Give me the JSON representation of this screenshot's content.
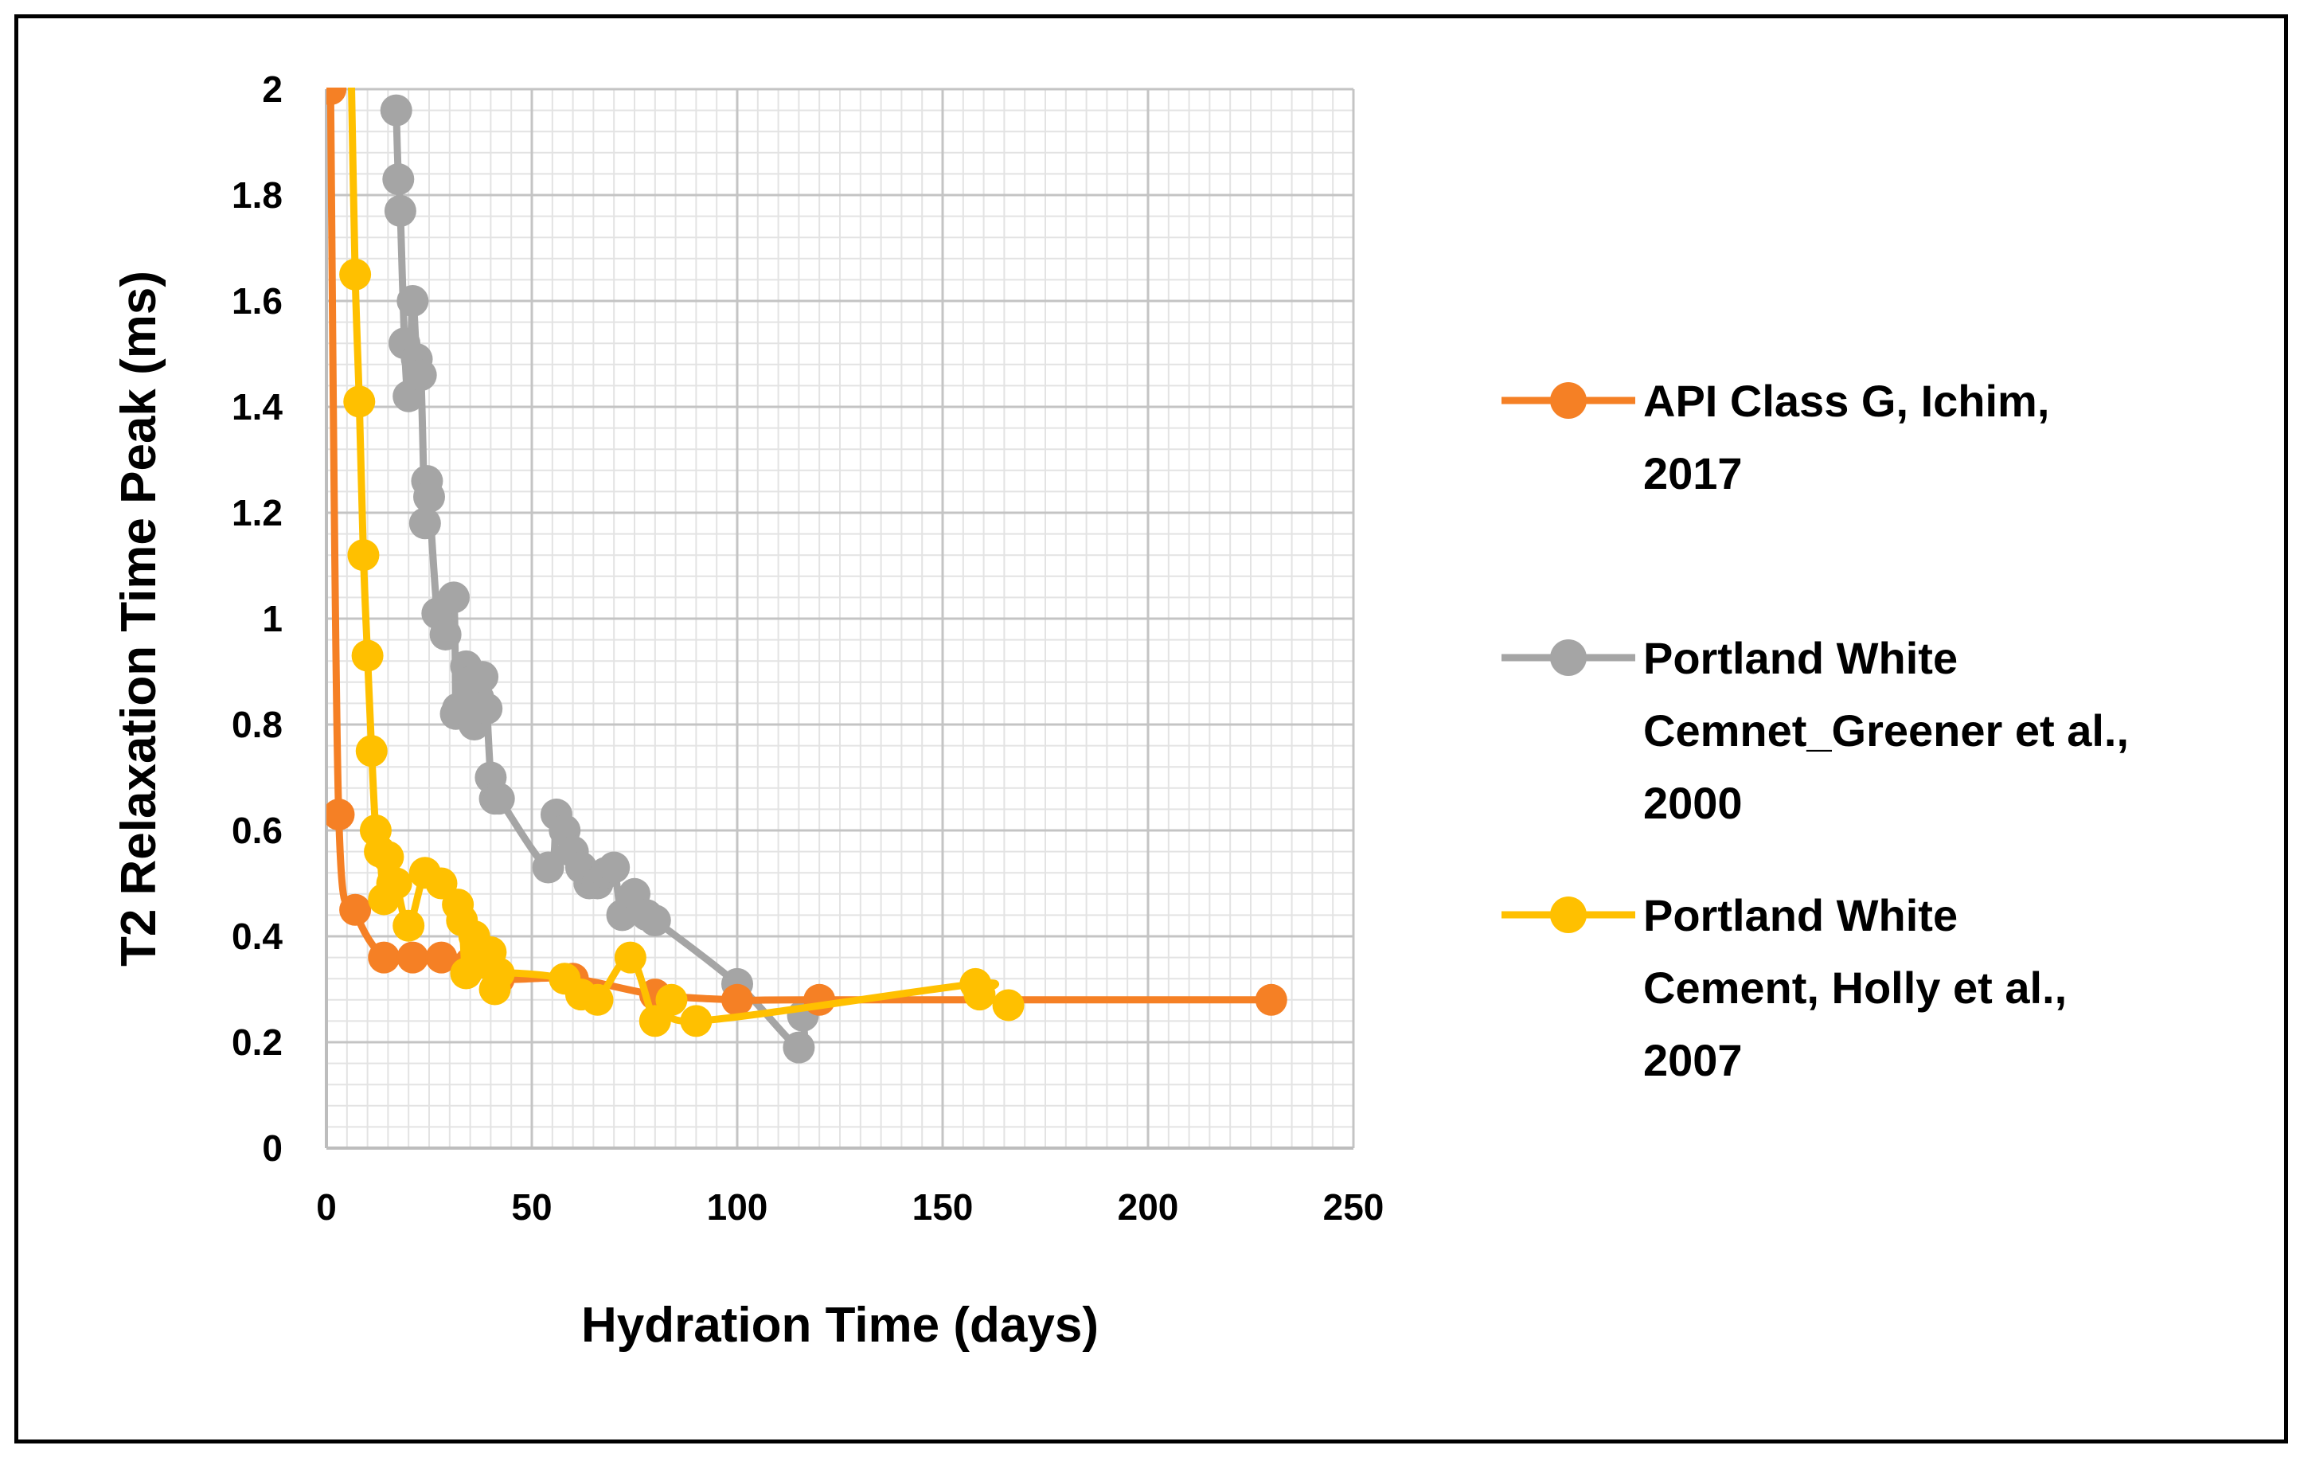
{
  "chart_data": {
    "type": "scatter",
    "xlabel": "Hydration Time (days)",
    "ylabel": "T2 Relaxation Time  Peak (ms)",
    "xlim": [
      0,
      250
    ],
    "ylim": [
      0,
      2
    ],
    "xticks": [
      0,
      50,
      100,
      150,
      200,
      250
    ],
    "yticks": [
      0,
      0.2,
      0.4,
      0.6,
      0.8,
      1,
      1.2,
      1.4,
      1.6,
      1.8,
      2
    ],
    "ytick_labels": [
      "0",
      "0.2",
      "0.4",
      "0.6",
      "0.8",
      "1",
      "1.2",
      "1.4",
      "1.6",
      "1.8",
      "2"
    ],
    "grid": true,
    "legend_position": "right",
    "series": [
      {
        "name": " API Class G, Ichim, 2017",
        "legend_lines": [
          " API Class G, Ichim,",
          "2017"
        ],
        "color": "#F58025",
        "x": [
          1,
          3,
          7,
          14,
          21,
          28,
          35,
          42,
          60,
          80,
          100,
          120,
          230
        ],
        "y": [
          2.0,
          0.63,
          0.45,
          0.36,
          0.36,
          0.36,
          0.35,
          0.32,
          0.32,
          0.29,
          0.28,
          0.28,
          0.28
        ]
      },
      {
        "name": "Portland White Cemnet_Greener et al., 2000",
        "legend_lines": [
          "Portland White",
          "Cemnet_Greener et al.,",
          "2000"
        ],
        "color": "#A5A5A5",
        "x": [
          17,
          17.5,
          18,
          19,
          20,
          21,
          22,
          23,
          24,
          24.5,
          25,
          27,
          29,
          31,
          31.5,
          32,
          34,
          35,
          36,
          37,
          38,
          39,
          40,
          41,
          42,
          54,
          56,
          58,
          60,
          62,
          64,
          66,
          68,
          70,
          72,
          75,
          78,
          80,
          100,
          115,
          116
        ],
        "y": [
          1.96,
          1.83,
          1.77,
          1.52,
          1.42,
          1.6,
          1.49,
          1.46,
          1.18,
          1.26,
          1.23,
          1.01,
          0.97,
          1.04,
          0.82,
          0.83,
          0.91,
          0.88,
          0.8,
          0.85,
          0.89,
          0.83,
          0.7,
          0.66,
          0.66,
          0.53,
          0.63,
          0.6,
          0.56,
          0.53,
          0.5,
          0.5,
          0.52,
          0.53,
          0.44,
          0.48,
          0.44,
          0.43,
          0.31,
          0.19,
          0.25
        ]
      },
      {
        "name": "Portland White Cement, Holly et al., 2007",
        "legend_lines": [
          "Portland White",
          "Cement, Holly et al.,",
          "2007"
        ],
        "color": "#FFC000",
        "x": [
          6,
          7,
          8,
          9,
          10,
          11,
          12,
          13,
          14,
          15,
          16,
          17,
          20,
          24,
          28,
          32,
          33,
          34,
          36,
          38,
          40,
          41,
          42,
          58,
          62,
          66,
          74,
          80,
          84,
          90,
          158,
          159,
          166
        ],
        "y": [
          2.05,
          1.65,
          1.41,
          1.12,
          0.93,
          0.75,
          0.6,
          0.56,
          0.47,
          0.55,
          0.5,
          0.5,
          0.42,
          0.52,
          0.5,
          0.46,
          0.43,
          0.33,
          0.4,
          0.35,
          0.37,
          0.3,
          0.33,
          0.32,
          0.29,
          0.28,
          0.36,
          0.24,
          0.28,
          0.24,
          0.31,
          0.29,
          0.27
        ]
      }
    ]
  }
}
